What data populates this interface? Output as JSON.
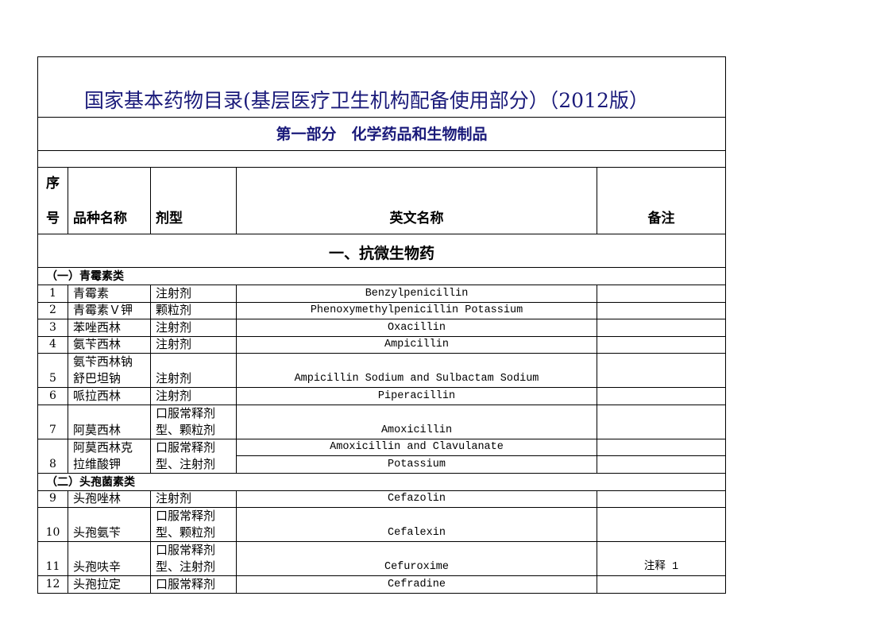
{
  "title": "国家基本药物目录(基层医疗卫生机构配备使用部分）（2012版）",
  "part": "第一部分　化学药品和生物制品",
  "headers": [
    [
      "序",
      "号"
    ],
    "品种名称",
    "剂型",
    "英文名称",
    "备注"
  ],
  "section": "一、抗微生物药",
  "groups": [
    {
      "title": "（一）青霉素类",
      "items": [
        {
          "no": 1,
          "name": "青霉素",
          "form": "注射剂",
          "english": "Benzylpenicillin"
        },
        {
          "no": 2,
          "name": "青霉素Ｖ钾",
          "form": "颗粒剂",
          "english": "Phenoxymethylpenicillin Potassium"
        },
        {
          "no": 3,
          "name": "苯唑西林",
          "form": "注射剂",
          "english": "Oxacillin"
        },
        {
          "no": 4,
          "name": "氨苄西林",
          "form": "注射剂",
          "english": "Ampicillin"
        },
        {
          "no": 5,
          "name": [
            "氨苄西林钠",
            "舒巴坦钠"
          ],
          "form": "注射剂",
          "english": "Ampicillin Sodium and Sulbactam Sodium"
        },
        {
          "no": 6,
          "name": "哌拉西林",
          "form": "注射剂",
          "english": "Piperacillin"
        },
        {
          "no": 7,
          "name": "阿莫西林",
          "form": [
            "口服常释剂",
            "型、颗粒剂"
          ],
          "english": "Amoxicillin"
        },
        {
          "no": 8,
          "name": [
            "阿莫西林克",
            "拉维酸钾"
          ],
          "form": [
            "口服常释剂",
            "型、注射剂"
          ],
          "english": [
            "Amoxicillin  and Clavulanate",
            "Potassium"
          ]
        }
      ]
    },
    {
      "title": "（二）头孢菌素类",
      "items": [
        {
          "no": 9,
          "name": "头孢唑林",
          "form": "注射剂",
          "english": "Cefazolin"
        },
        {
          "no": 10,
          "name": "头孢氨苄",
          "form": [
            "口服常释剂",
            "型、颗粒剂"
          ],
          "english": "Cefalexin"
        },
        {
          "no": 11,
          "name": "头孢呋辛",
          "form": [
            "口服常释剂",
            "型、注射剂"
          ],
          "english": "Cefuroxime",
          "note": "注释 1"
        },
        {
          "no": 12,
          "name": "头孢拉定",
          "form": "口服常释剂",
          "english": "Cefradine"
        }
      ]
    }
  ]
}
